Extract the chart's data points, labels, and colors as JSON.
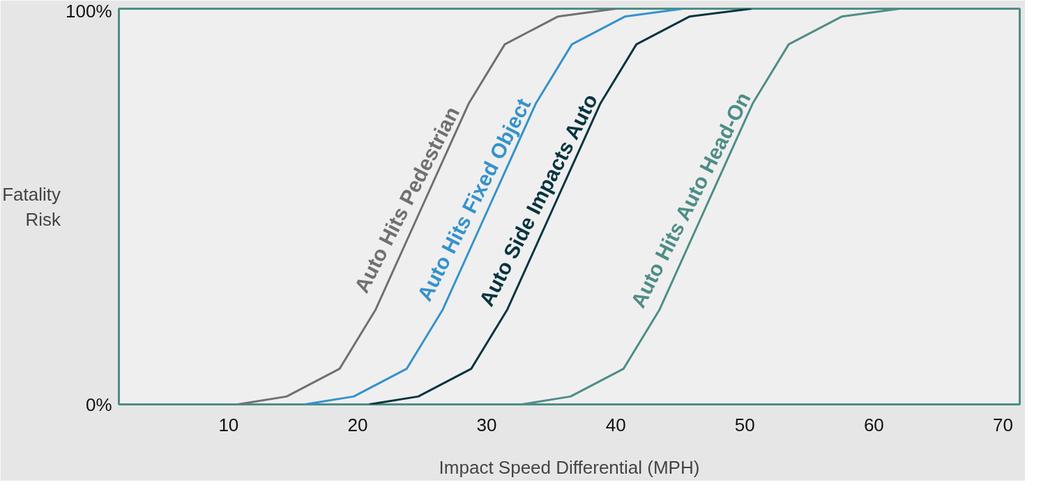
{
  "chart_data": {
    "type": "line",
    "xlabel": "Impact Speed Differential (MPH)",
    "ylabel": "Fatality\nRisk",
    "xlim": [
      1.5,
      71.3
    ],
    "xticks": [
      10,
      20,
      30,
      40,
      50,
      60,
      70
    ],
    "ylim": [
      0,
      100
    ],
    "yticks": [
      {
        "value": 0,
        "label": "0%"
      },
      {
        "value": 100,
        "label": "100%"
      }
    ],
    "grid": false,
    "marker": "none",
    "line_style": "solid",
    "series": [
      {
        "name": "Auto Hits Pedestrian",
        "color": "#707070",
        "x": [
          10.7,
          14.5,
          18.6,
          21.4,
          25,
          28.6,
          31.4,
          35.5,
          40
        ],
        "values": [
          0,
          2,
          9,
          24,
          50,
          76,
          91,
          98,
          100
        ]
      },
      {
        "name": "Auto Hits Fixed Object",
        "color": "#3592cc",
        "x": [
          15.9,
          19.7,
          23.8,
          26.6,
          30.2,
          33.8,
          36.6,
          40.7,
          45.2
        ],
        "values": [
          0,
          2,
          9,
          24,
          50,
          76,
          91,
          98,
          100
        ]
      },
      {
        "name": "Auto Side Impacts Auto",
        "color": "#053440",
        "x": [
          20.9,
          24.7,
          28.8,
          31.6,
          35.2,
          38.8,
          41.6,
          45.7,
          50.5
        ],
        "values": [
          0,
          2,
          9,
          24,
          50,
          76,
          91,
          98,
          100
        ]
      },
      {
        "name": "Auto Hits Auto Head-On",
        "color": "#4e8d86",
        "x": [
          32.7,
          36.5,
          40.6,
          43.4,
          47,
          50.6,
          53.4,
          57.5,
          62
        ],
        "values": [
          0,
          2,
          9,
          24,
          50,
          76,
          91,
          98,
          100
        ]
      }
    ]
  }
}
